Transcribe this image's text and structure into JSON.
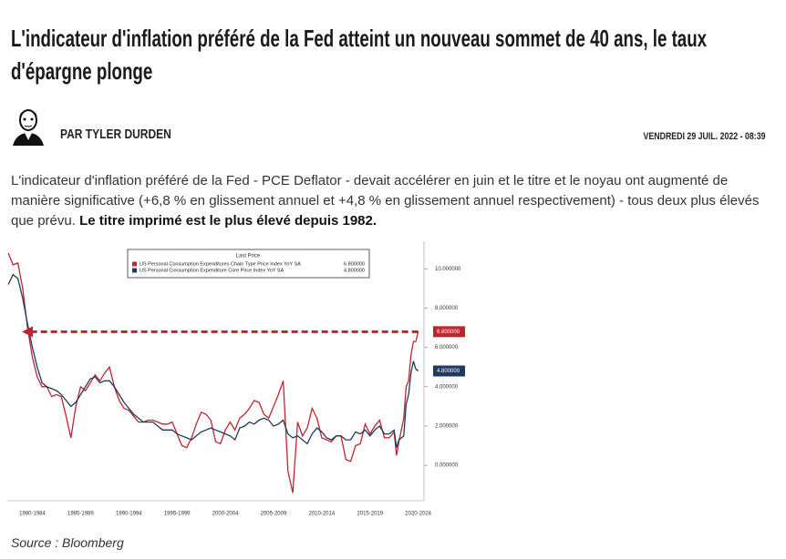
{
  "header": {
    "title": "L'indicateur d'inflation préféré de la Fed atteint un nouveau sommet de 40 ans, le taux d'épargne plonge",
    "author": "PAR TYLER DURDEN",
    "date": "VENDREDI 29 JUIL. 2022 - 08:39"
  },
  "article": {
    "paragraph": "L'indicateur d'inflation préféré de la Fed - PCE Deflator - devait accélérer en juin et le titre et le noyau ont augmenté de manière significative (+6,8 % en glissement annuel et +4,8 % en glissement annuel respectivement) - tous deux plus élevés que prévu.",
    "emphasis": "Le titre imprimé est le plus élevé depuis 1982."
  },
  "chart_data": {
    "type": "line",
    "legend_title": "Last Price",
    "x": [
      1980,
      1980.5,
      1981,
      1981.5,
      1982,
      1982.5,
      1983,
      1983.5,
      1984,
      1984.5,
      1985,
      1985.5,
      1986,
      1986.5,
      1987,
      1987.5,
      1988,
      1988.5,
      1989,
      1989.5,
      1990,
      1990.5,
      1991,
      1991.5,
      1992,
      1992.5,
      1993,
      1993.5,
      1994,
      1994.5,
      1995,
      1995.5,
      1996,
      1996.5,
      1997,
      1997.5,
      1998,
      1998.5,
      1999,
      1999.5,
      2000,
      2000.5,
      2001,
      2001.5,
      2002,
      2002.5,
      2003,
      2003.5,
      2004,
      2004.5,
      2005,
      2005.5,
      2006,
      2006.5,
      2007,
      2007.5,
      2008,
      2008.5,
      2009,
      2009.5,
      2010,
      2010.5,
      2011,
      2011.5,
      2012,
      2012.5,
      2013,
      2013.5,
      2014,
      2014.5,
      2015,
      2015.5,
      2016,
      2016.5,
      2017,
      2017.5,
      2018,
      2018.5,
      2019,
      2019.5,
      2020,
      2020.25,
      2020.5,
      2021,
      2021.25,
      2021.5,
      2021.75,
      2022,
      2022.25,
      2022.5
    ],
    "xlim": [
      1979.9,
      2023.1
    ],
    "xticks": [
      {
        "value": 1982.5,
        "label": "1980-1984"
      },
      {
        "value": 1987.5,
        "label": "1985-1989"
      },
      {
        "value": 1992.5,
        "label": "1990-1994"
      },
      {
        "value": 1997.5,
        "label": "1995-1999"
      },
      {
        "value": 2002.5,
        "label": "2000-2004"
      },
      {
        "value": 2007.5,
        "label": "2005-2009"
      },
      {
        "value": 2012.5,
        "label": "2010-2014"
      },
      {
        "value": 2017.5,
        "label": "2015-2019"
      },
      {
        "value": 2022.5,
        "label": "2020-2024"
      }
    ],
    "ylim": [
      -1.8,
      11.4
    ],
    "yticks": [
      {
        "value": 0,
        "label": "0.000000"
      },
      {
        "value": 2,
        "label": "2.000000"
      },
      {
        "value": 4,
        "label": "4.000000"
      },
      {
        "value": 6,
        "label": "6.000000"
      },
      {
        "value": 8,
        "label": "8.000000"
      },
      {
        "value": 10,
        "label": "10.000000"
      }
    ],
    "series": [
      {
        "name": "US Personal Consumption Expenditures Chain Type Price Index YoY SA",
        "color": "#c0242f",
        "last_price": {
          "value": 6.8,
          "label": "6.800000"
        },
        "values": [
          10.8,
          10.2,
          10.3,
          9.0,
          7.0,
          5.5,
          4.5,
          4.0,
          4.0,
          3.5,
          3.6,
          3.5,
          2.5,
          1.4,
          3.0,
          4.0,
          3.8,
          4.2,
          4.6,
          4.3,
          4.7,
          5.0,
          4.0,
          3.3,
          2.9,
          2.8,
          2.5,
          2.2,
          2.2,
          2.3,
          2.3,
          2.2,
          2.1,
          2.1,
          2.2,
          1.6,
          1.0,
          0.9,
          1.4,
          2.1,
          2.7,
          2.6,
          2.3,
          1.2,
          1.1,
          1.8,
          2.2,
          1.8,
          2.4,
          2.6,
          2.9,
          3.3,
          3.2,
          2.6,
          2.4,
          3.0,
          3.6,
          4.3,
          -0.3,
          -1.4,
          2.2,
          1.5,
          1.9,
          2.9,
          2.4,
          1.4,
          1.3,
          1.2,
          1.5,
          1.5,
          0.3,
          0.2,
          1.0,
          1.1,
          2.1,
          1.6,
          2.0,
          2.3,
          1.4,
          1.4,
          1.7,
          0.5,
          1.2,
          2.4,
          4.0,
          4.3,
          5.6,
          6.3,
          6.3,
          6.8
        ]
      },
      {
        "name": "US Personal Consumption Expenditure Core Price Index YoY SA",
        "color": "#1f3b5c",
        "last_price": {
          "value": 4.8,
          "label": "4.800000"
        },
        "values": [
          9.2,
          9.7,
          9.5,
          8.5,
          7.2,
          6.0,
          5.0,
          4.2,
          4.0,
          3.9,
          3.8,
          3.6,
          3.3,
          3.0,
          3.2,
          3.6,
          4.0,
          4.4,
          4.5,
          4.2,
          4.3,
          4.3,
          4.0,
          3.6,
          3.2,
          2.9,
          2.6,
          2.4,
          2.2,
          2.2,
          2.2,
          2.0,
          1.8,
          1.8,
          1.8,
          1.6,
          1.5,
          1.4,
          1.3,
          1.5,
          1.7,
          1.8,
          1.9,
          1.8,
          1.7,
          1.6,
          1.5,
          1.3,
          1.9,
          2.0,
          2.2,
          2.1,
          2.3,
          2.4,
          2.3,
          2.0,
          2.1,
          2.3,
          1.6,
          1.4,
          1.5,
          1.3,
          1.1,
          1.6,
          1.9,
          1.7,
          1.4,
          1.3,
          1.5,
          1.5,
          1.3,
          1.3,
          1.7,
          1.6,
          1.8,
          1.5,
          1.8,
          2.0,
          1.6,
          1.6,
          1.8,
          0.9,
          1.3,
          1.5,
          3.1,
          3.6,
          4.7,
          5.3,
          4.9,
          4.8
        ]
      }
    ]
  },
  "source": "Source : Bloomberg"
}
